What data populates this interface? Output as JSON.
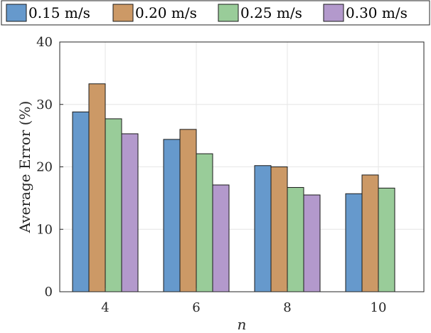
{
  "chart_data": {
    "type": "bar",
    "xlabel": "n",
    "ylabel": "Average Error (%)",
    "categories": [
      "4",
      "6",
      "8",
      "10"
    ],
    "ylim": [
      0,
      40
    ],
    "yticks": [
      "0",
      "10",
      "20",
      "30",
      "40"
    ],
    "grid": true,
    "legend_position": "top",
    "series": [
      {
        "name": "0.15 m/s",
        "color": "#6699cc",
        "values": [
          28.8,
          24.4,
          20.2,
          15.7
        ]
      },
      {
        "name": "0.20 m/s",
        "color": "#cc9966",
        "values": [
          33.3,
          26.0,
          20.0,
          18.7
        ]
      },
      {
        "name": "0.25 m/s",
        "color": "#99cc99",
        "values": [
          27.7,
          22.1,
          16.7,
          16.6
        ]
      },
      {
        "name": "0.30 m/s",
        "color": "#b399cc",
        "values": [
          25.3,
          17.1,
          15.5,
          0.0
        ]
      }
    ]
  }
}
